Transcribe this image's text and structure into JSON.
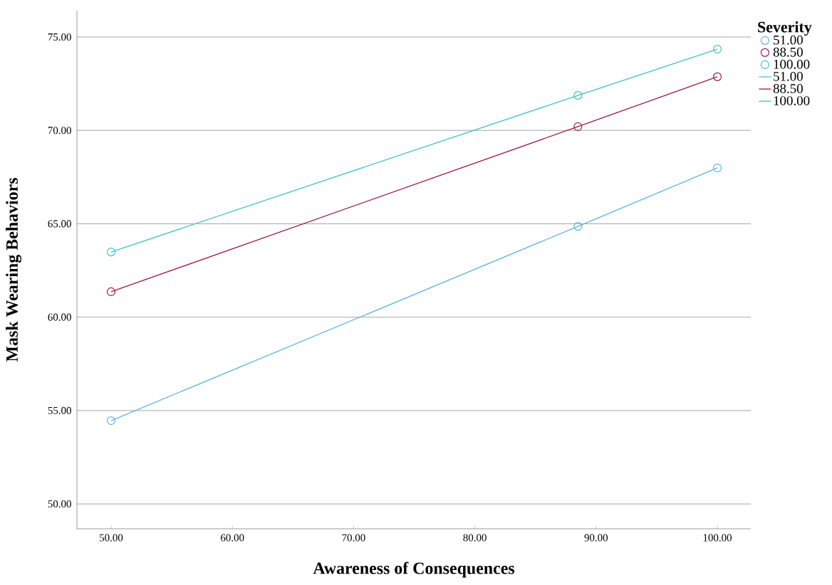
{
  "chart_data": {
    "type": "line",
    "xlabel": "Awareness of Consequences",
    "ylabel": "Mask Wearing Behaviors",
    "legend_title": "Severity",
    "xlim": [
      47.18,
      102.76
    ],
    "ylim": [
      48.67,
      76.41
    ],
    "xticks": [
      {
        "value": 50,
        "label": "50.00"
      },
      {
        "value": 60,
        "label": "60.00"
      },
      {
        "value": 70,
        "label": "70.00"
      },
      {
        "value": 80,
        "label": "80.00"
      },
      {
        "value": 90,
        "label": "90.00"
      },
      {
        "value": 100,
        "label": "100.00"
      }
    ],
    "yticks": [
      {
        "value": 50,
        "label": "50.00"
      },
      {
        "value": 55,
        "label": "55.00"
      },
      {
        "value": 60,
        "label": "60.00"
      },
      {
        "value": 65,
        "label": "65.00"
      },
      {
        "value": 70,
        "label": "70.00"
      },
      {
        "value": 75,
        "label": "75.00"
      }
    ],
    "x": [
      50,
      88.5,
      100
    ],
    "grid": "y",
    "legend": "top right",
    "marker": "circle",
    "series": [
      {
        "name": "51.00",
        "type": "scatter",
        "color": "#5ab4e0",
        "values": [
          54.46,
          64.86,
          67.99
        ]
      },
      {
        "name": "88.50",
        "type": "scatter",
        "color": "#9b1c4a",
        "values": [
          61.36,
          70.2,
          72.87
        ]
      },
      {
        "name": "100.00",
        "type": "scatter",
        "color": "#3ec1c4",
        "values": [
          63.49,
          71.87,
          74.35
        ]
      },
      {
        "name": "51.00",
        "marker": "none",
        "color": "#5ab4e0",
        "values": [
          54.46,
          64.86,
          67.99
        ]
      },
      {
        "name": "88.50",
        "marker": "none",
        "color": "#9b1c4a",
        "values": [
          61.36,
          70.2,
          72.87
        ]
      },
      {
        "name": "100.00",
        "marker": "none",
        "color": "#3ec1c4",
        "values": [
          63.49,
          71.87,
          74.35
        ]
      }
    ]
  }
}
